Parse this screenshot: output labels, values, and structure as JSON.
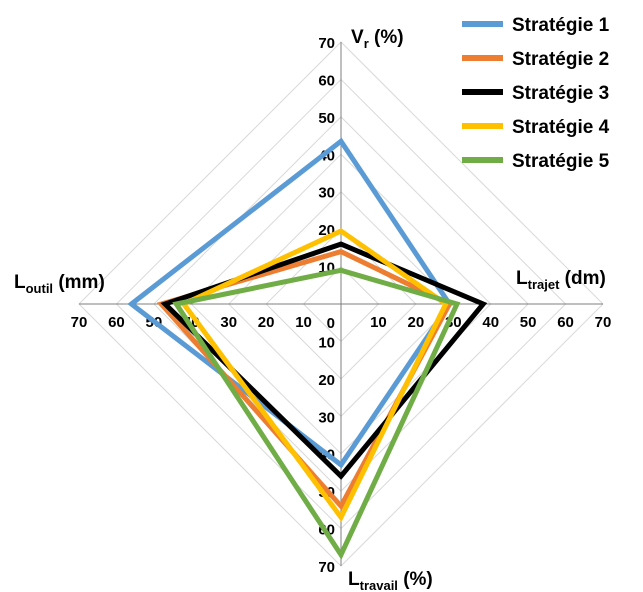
{
  "chart_data": {
    "type": "radar",
    "axes": [
      {
        "id": "vr",
        "title_main": "V",
        "title_sub": "r",
        "title_suffix": " (%)",
        "direction": "up"
      },
      {
        "id": "ltrajet",
        "title_main": "L",
        "title_sub": "trajet",
        "title_suffix": " (dm)",
        "direction": "right"
      },
      {
        "id": "ltravail",
        "title_main": "L",
        "title_sub": "travail",
        "title_suffix": " (%)",
        "direction": "down"
      },
      {
        "id": "loutil",
        "title_main": "L",
        "title_sub": "outil",
        "title_suffix": " (mm)",
        "direction": "left"
      }
    ],
    "range": [
      0,
      70
    ],
    "ticks": [
      0,
      10,
      20,
      30,
      40,
      50,
      60,
      70
    ],
    "series": [
      {
        "name": "Stratégie 1",
        "color": "#5B9BD5",
        "values": {
          "vr": 43.5,
          "ltrajet": 29,
          "ltravail": 43,
          "loutil": 56
        }
      },
      {
        "name": "Stratégie 2",
        "color": "#ED7D31",
        "values": {
          "vr": 14,
          "ltrajet": 29,
          "ltravail": 54,
          "loutil": 48
        }
      },
      {
        "name": "Stratégie 3",
        "color": "#000000",
        "values": {
          "vr": 16,
          "ltrajet": 38,
          "ltravail": 46,
          "loutil": 47
        }
      },
      {
        "name": "Stratégie 4",
        "color": "#FFC000",
        "values": {
          "vr": 19.5,
          "ltrajet": 28,
          "ltravail": 57,
          "loutil": 42
        }
      },
      {
        "name": "Stratégie 5",
        "color": "#70AD47",
        "values": {
          "vr": 9,
          "ltrajet": 31,
          "ltravail": 67,
          "loutil": 44
        }
      }
    ],
    "legend_position": "top-right",
    "grid": true
  }
}
